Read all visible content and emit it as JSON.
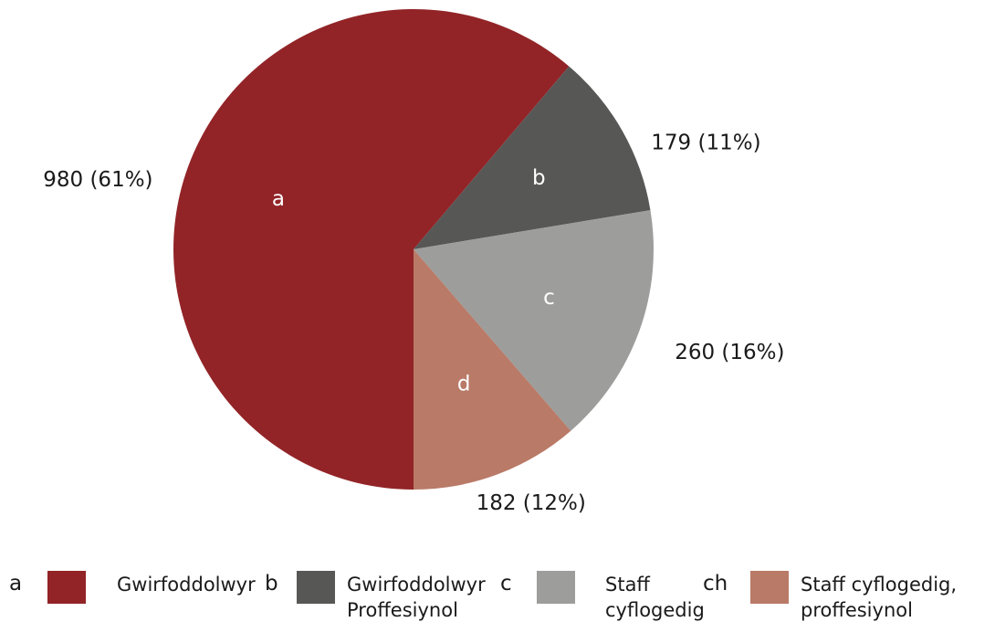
{
  "chart_data": {
    "type": "pie",
    "categories": [
      "Gwirfoddolwyr",
      "Gwirfoddolwyr Proffesiynol",
      "Staff cyflogedig",
      "Staff cyflogedig, proffesiynol"
    ],
    "keys": [
      "a",
      "b",
      "c",
      "ch"
    ],
    "slice_labels": [
      "a",
      "b",
      "c",
      "d"
    ],
    "values": [
      980,
      179,
      260,
      182
    ],
    "value_labels": [
      "980 (61%)",
      "179 (11%)",
      "260 (16%)",
      "182 (12%)"
    ],
    "colors": [
      "#922427",
      "#575756",
      "#9d9d9c",
      "#b97a67"
    ]
  }
}
